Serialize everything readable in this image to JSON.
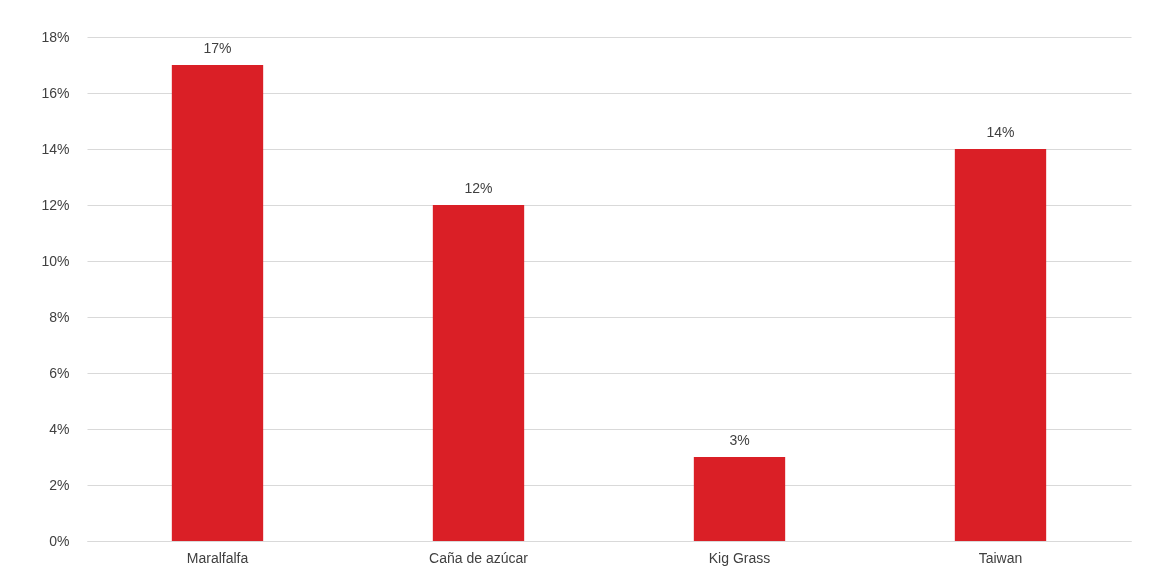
{
  "chart_data": {
    "type": "bar",
    "categories": [
      "Maralfalfa",
      "Caña de azúcar",
      "Kig Grass",
      "Taiwan"
    ],
    "values": [
      17,
      12,
      3,
      14
    ],
    "color": "#da1f26",
    "value_labels": [
      "17%",
      "12%",
      "3%",
      "14%"
    ],
    "ylim": [
      0,
      18
    ],
    "yticks": [
      {
        "value": 0,
        "label": "0%"
      },
      {
        "value": 2,
        "label": "2%"
      },
      {
        "value": 4,
        "label": "4%"
      },
      {
        "value": 6,
        "label": "6%"
      },
      {
        "value": 8,
        "label": "8%"
      },
      {
        "value": 10,
        "label": "10%"
      },
      {
        "value": 12,
        "label": "12%"
      },
      {
        "value": 14,
        "label": "14%"
      },
      {
        "value": 16,
        "label": "16%"
      },
      {
        "value": 18,
        "label": "18%"
      }
    ],
    "grid": "y"
  }
}
